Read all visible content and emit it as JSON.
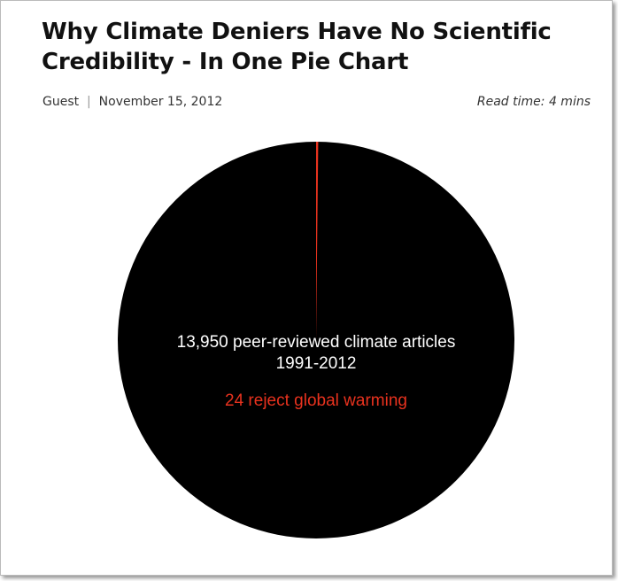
{
  "header": {
    "title": "Why Climate Deniers Have No Scientific Credibility - In One Pie Chart",
    "author": "Guest",
    "date": "November 15, 2012",
    "read_time": "Read time: 4 mins"
  },
  "chart_data": {
    "type": "pie",
    "total": 13950,
    "total_label": "13,950 peer-reviewed climate articles",
    "subtitle": "1991-2012",
    "color": "#000000",
    "series": [
      {
        "name": "24 reject global warming",
        "value": 24,
        "color": "#e8321e"
      }
    ]
  }
}
